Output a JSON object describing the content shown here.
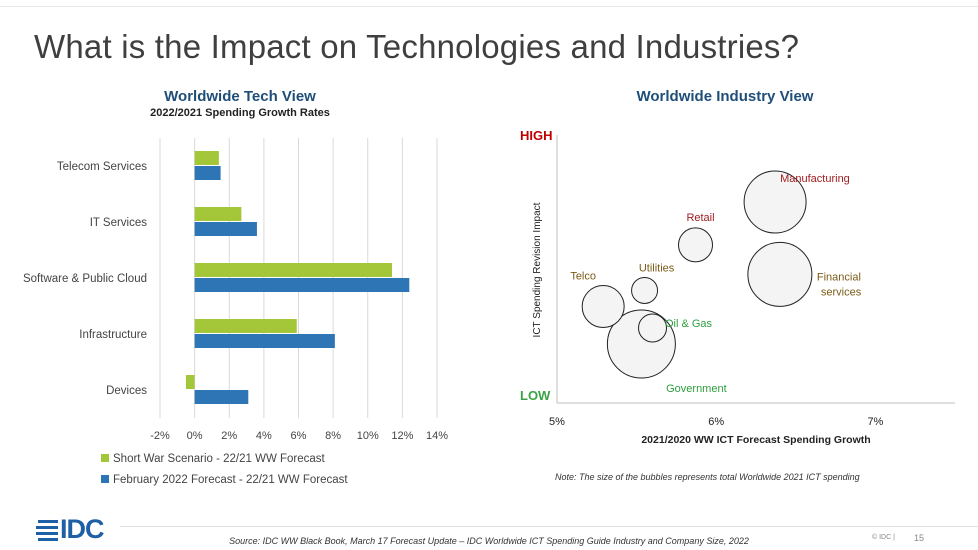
{
  "slide": {
    "title": "What is the Impact on Technologies and Industries?",
    "source": "Source: IDC WW Black Book, March 17 Forecast Update – IDC Worldwide ICT Spending Guide Industry and Company Size, 2022",
    "logo": "IDC",
    "page_mark": "© IDC |",
    "page_number": "15",
    "accent_color": "#1f4e79"
  },
  "chart_data": [
    {
      "type": "bar",
      "orientation": "horizontal",
      "title": "Worldwide Tech View",
      "subtitle": "2022/2021 Spending Growth Rates",
      "categories": [
        "Telecom Services",
        "IT Services",
        "Software & Public Cloud",
        "Infrastructure",
        "Devices"
      ],
      "series": [
        {
          "name": "Short War Scenario - 22/21 WW Forecast",
          "color": "#a4c639",
          "values": [
            1.4,
            2.7,
            11.4,
            5.9,
            -0.5
          ]
        },
        {
          "name": "February 2022 Forecast - 22/21 WW  Forecast",
          "color": "#2e75b6",
          "values": [
            1.5,
            3.6,
            12.4,
            8.1,
            3.1
          ]
        }
      ],
      "xlim": [
        -2,
        14
      ],
      "xticks": [
        "-2%",
        "0%",
        "2%",
        "4%",
        "6%",
        "8%",
        "10%",
        "12%",
        "14%"
      ],
      "grid": true,
      "legend": "bottom"
    },
    {
      "type": "scatter",
      "subtype": "bubble",
      "title": "Worldwide Industry View",
      "xlabel": "2021/2020 WW ICT Forecast Spending Growth",
      "ylabel": "ICT Spending Revision Impact",
      "y_high_label": "HIGH",
      "y_low_label": "LOW",
      "xlim": [
        5,
        7.5
      ],
      "xticks": [
        "5%",
        "6%",
        "7%"
      ],
      "note": "Note: The size of the bubbles represents total Worldwide 2021 ICT spending",
      "points": [
        {
          "label": "Manufacturing",
          "x": 6.37,
          "y": 0.75,
          "size": 31,
          "label_color": "#a11d21"
        },
        {
          "label": "Financial services",
          "x": 6.4,
          "y": 0.48,
          "size": 32,
          "label_color": "#7b5a17"
        },
        {
          "label": "Retail",
          "x": 5.87,
          "y": 0.59,
          "size": 17,
          "label_color": "#a11d21"
        },
        {
          "label": "Utilities",
          "x": 5.55,
          "y": 0.42,
          "size": 13,
          "label_color": "#7b5a17"
        },
        {
          "label": "Telco",
          "x": 5.29,
          "y": 0.36,
          "size": 21,
          "label_color": "#7b5a17"
        },
        {
          "label": "Oil & Gas",
          "x": 5.6,
          "y": 0.28,
          "size": 14,
          "label_color": "#2e9e3e"
        },
        {
          "label": "Government",
          "x": 5.53,
          "y": 0.22,
          "size": 34,
          "label_color": "#2e9e3e"
        }
      ]
    }
  ]
}
